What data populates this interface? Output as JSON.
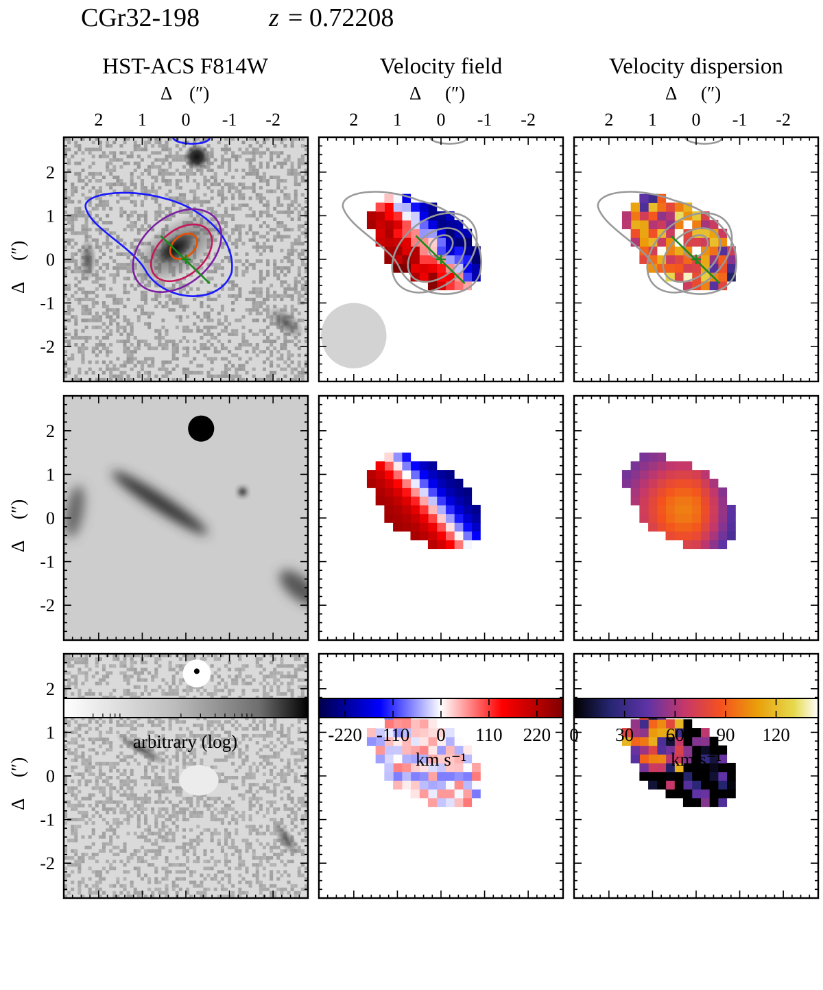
{
  "header": {
    "object_name": "CGr32-198",
    "redshift_symbol": "z",
    "redshift_equals": "= 0.72208"
  },
  "columns": [
    {
      "title": "HST-ACS F814W"
    },
    {
      "title": "Velocity field"
    },
    {
      "title": "Velocity dispersion"
    }
  ],
  "axes": {
    "delta_label": "Δ",
    "arcsec_label": "(″)",
    "x_tick_labels": [
      "2",
      "1",
      "0",
      "-1",
      "-2"
    ],
    "y_tick_labels": [
      "2",
      "1",
      "0",
      "-1",
      "-2"
    ],
    "tick_values": [
      2,
      1,
      0,
      -1,
      -2
    ],
    "range_arcsec": [
      2.8,
      -2.8
    ]
  },
  "colorbars": [
    {
      "scale": "gray",
      "label": "arbitrary (log)",
      "tick_labels": []
    },
    {
      "scale": "seismic",
      "label": "km s⁻¹",
      "tick_labels": [
        "-220",
        "-110",
        "0",
        "110",
        "220"
      ],
      "tick_values": [
        -220,
        -110,
        0,
        110,
        220
      ],
      "range": [
        -280,
        280
      ]
    },
    {
      "scale": "CMRmap",
      "label": "km s⁻¹",
      "tick_labels": [
        "0",
        "30",
        "60",
        "90",
        "120"
      ],
      "tick_values": [
        0,
        30,
        60,
        90,
        120
      ],
      "range": [
        0,
        145
      ]
    }
  ],
  "colors": {
    "contour_outer": "#1a1aff",
    "contour_2": "#7b1fa2",
    "contour_3": "#c2185b",
    "contour_inner": "#e65100",
    "contour_gray": "#999999",
    "major_axis_line": "#1a8a1a",
    "psf_disk": "#d3d3d3"
  },
  "major_axis": {
    "position_angle_deg": 50,
    "center_arcsec": [
      0,
      0
    ]
  },
  "psf": {
    "center_arcsec": [
      2.0,
      -1.75
    ],
    "fwhm_arcsec": 1.5
  }
}
